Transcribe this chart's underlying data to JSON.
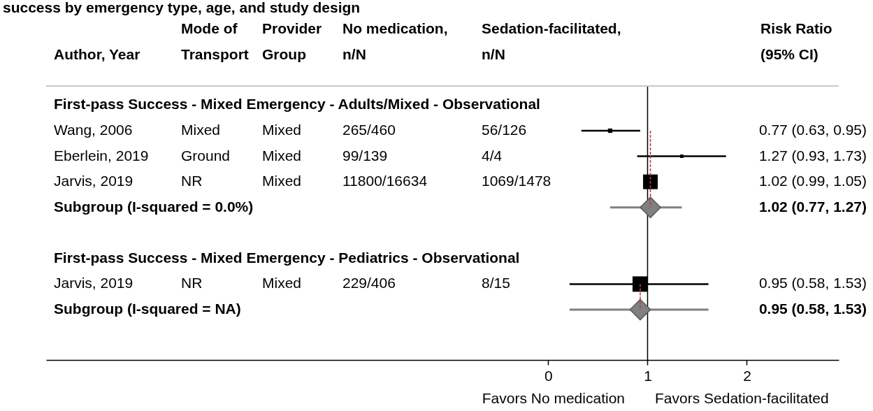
{
  "chart_data": {
    "type": "scatter",
    "orientation": "horizontal",
    "title": "success by emergency type, age, and study design",
    "categories": [
      "First-pass Success - Mixed Emergency - Adults/Mixed - Observational",
      "Wang, 2006",
      "Eberlein, 2019",
      "Jarvis, 2019",
      "Subgroup (I-squared = 0.0%)",
      null,
      "First-pass Success - Mixed Emergency - Pediatrics - Observational",
      "Jarvis, 2019",
      "Subgroup (I-squared = NA)"
    ],
    "log": "x",
    "xlim": [
      0.015,
      3.8
    ],
    "xticks": [
      {
        "value": 0.5,
        "label": "0"
      },
      1,
      2
    ],
    "series": [
      {
        "type": "bubble",
        "marker": "square",
        "color": "#000000",
        "values": [
          null,
          0.77,
          1.27,
          1.02,
          null,
          null,
          null,
          0.95,
          null
        ],
        "sizes": [
          null,
          0.08,
          0.05,
          0.91,
          null,
          null,
          null,
          1,
          null
        ],
        "errors": [
          null,
          [
            0.63,
            0.95
          ],
          [
            0.93,
            1.73
          ],
          [
            0.99,
            1.05
          ],
          null,
          null,
          null,
          [
            0.58,
            1.53
          ],
          null
        ]
      },
      {
        "marker": "diamond",
        "color": "#808080",
        "values": [
          null,
          null,
          null,
          null,
          1.02,
          null,
          null,
          null,
          0.95
        ],
        "errors": [
          null,
          null,
          null,
          null,
          [
            0.77,
            1.27
          ],
          null,
          null,
          null,
          [
            0.58,
            1.53
          ]
        ]
      },
      {
        "type": "line",
        "color": "#b5403a",
        "line_style": "dashed",
        "values": [
          null,
          1.02,
          1.02,
          1.02,
          1.02,
          null,
          null,
          null,
          null
        ]
      },
      {
        "type": "line",
        "color": "#b5403a",
        "line_style": "dashed",
        "values": [
          null,
          null,
          null,
          null,
          null,
          null,
          null,
          0.95,
          0.95
        ]
      }
    ],
    "ref_lines": [
      {
        "axis": "x",
        "value": 1,
        "color": "#000000"
      }
    ],
    "annotations": [
      "Author, Year",
      "Mode of\nTransport",
      "Provider\nGroup",
      "No medication,\nn/N",
      "Sedation-facilitated,\nn/N",
      "Risk Ratio\n(95% CI)",
      "Mixed",
      "Mixed",
      "265/460",
      "56/126",
      "0.77 (0.63, 0.95)",
      "Ground",
      "Mixed",
      "99/139",
      "4/4",
      "1.27 (0.93, 1.73)",
      "NR",
      "Mixed",
      "11800/16634",
      "1069/1478",
      "1.02 (0.99, 1.05)",
      "1.02 (0.77, 1.27)",
      "NR",
      "Mixed",
      "229/406",
      "8/15",
      "0.95 (0.58, 1.53)",
      "0.95 (0.58, 1.53)",
      "Favors No medication",
      "Favors Sedation-facilitated"
    ]
  }
}
